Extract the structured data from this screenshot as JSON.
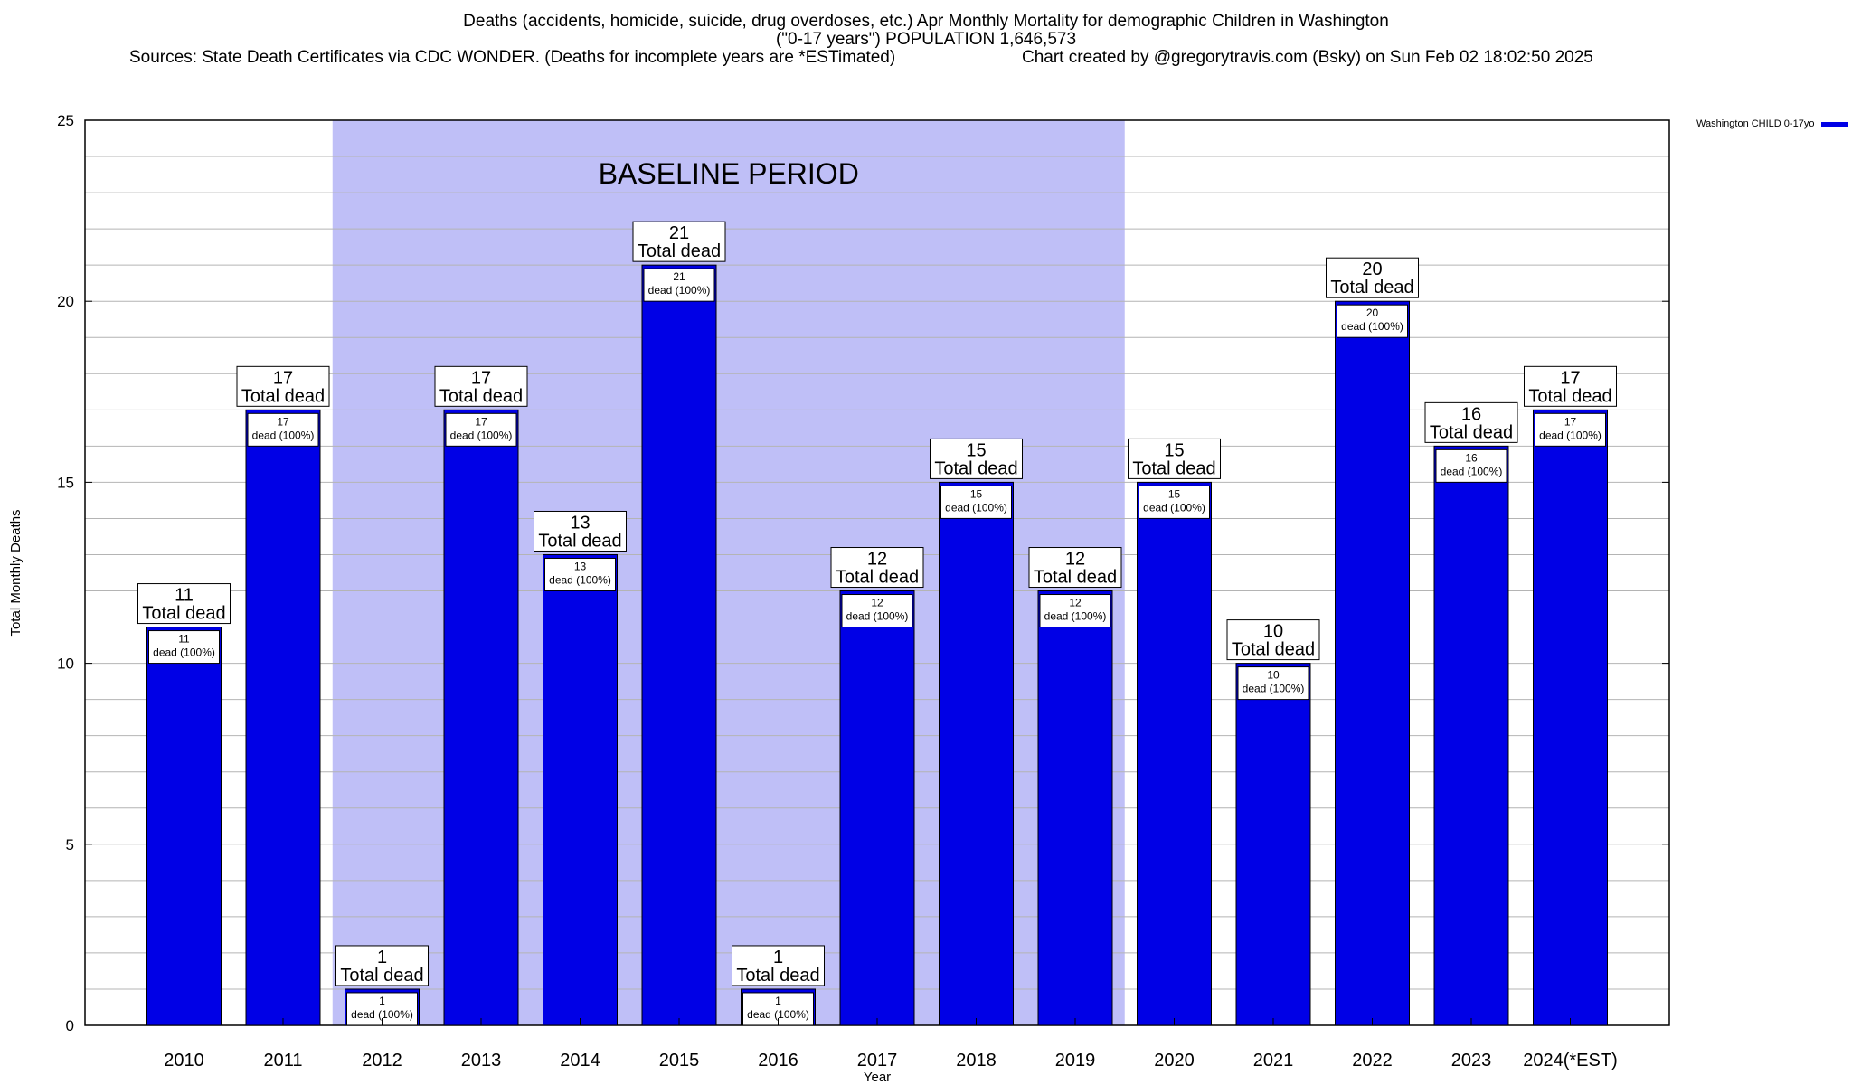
{
  "title": {
    "line1": "Deaths (accidents, homicide, suicide, drug overdoses, etc.) Apr Monthly Mortality for demographic Children in Washington",
    "line2": "(\"0-17 years\") POPULATION 1,646,573",
    "sources": "Sources: State Death Certificates via CDC WONDER. (Deaths for incomplete years are *ESTimated)",
    "credit": "Chart created by @gregorytravis.com (Bsky) on Sun Feb 02 18:02:50 2025"
  },
  "legend": {
    "label": "Washington CHILD 0-17yo",
    "color": "#0000e6"
  },
  "chart_data": {
    "type": "bar",
    "title": "Deaths (accidents, homicide, suicide, drug overdoses, etc.) Apr Monthly Mortality for demographic Children in Washington",
    "xlabel": "Year",
    "ylabel": "Total Monthly Deaths",
    "ylim": [
      0,
      25
    ],
    "yticks": [
      0,
      5,
      10,
      15,
      20,
      25
    ],
    "grid": true,
    "legend_position": "top-right",
    "categories": [
      "2010",
      "2011",
      "2012",
      "2013",
      "2014",
      "2015",
      "2016",
      "2017",
      "2018",
      "2019",
      "2020",
      "2021",
      "2022",
      "2023",
      "2024(*EST)"
    ],
    "series": [
      {
        "name": "Washington CHILD 0-17yo",
        "color": "#0000e6",
        "values": [
          11,
          17,
          1,
          17,
          13,
          21,
          1,
          12,
          15,
          12,
          15,
          10,
          20,
          16,
          17
        ]
      }
    ],
    "total_label": "Total dead",
    "inner_label": "dead (100%)",
    "baseline": {
      "label": "BASELINE PERIOD",
      "from": "2012",
      "to": "2019",
      "color": "#bfbff7"
    }
  }
}
